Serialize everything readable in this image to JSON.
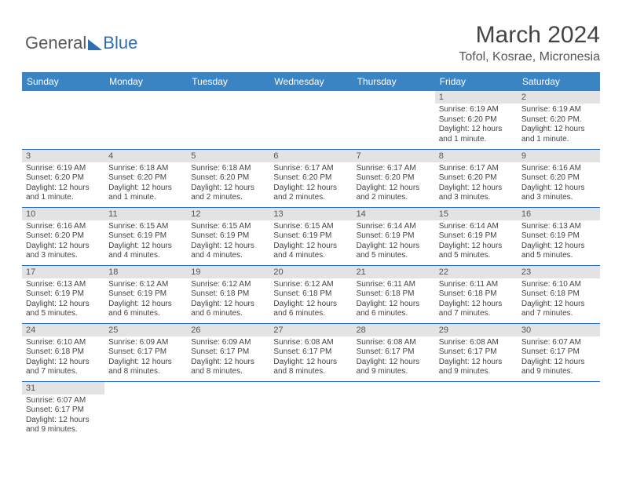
{
  "logo": {
    "part1": "General",
    "part2": "Blue"
  },
  "header": {
    "title": "March 2024",
    "location": "Tofol, Kosrae, Micronesia"
  },
  "colors": {
    "headerBg": "#3b84c4",
    "rowBorder": "#2f6fb0",
    "dayNumBg": "#e3e3e3"
  },
  "weekdays": [
    "Sunday",
    "Monday",
    "Tuesday",
    "Wednesday",
    "Thursday",
    "Friday",
    "Saturday"
  ],
  "weeks": [
    [
      {
        "n": "",
        "t": ""
      },
      {
        "n": "",
        "t": ""
      },
      {
        "n": "",
        "t": ""
      },
      {
        "n": "",
        "t": ""
      },
      {
        "n": "",
        "t": ""
      },
      {
        "n": "1",
        "t": "Sunrise: 6:19 AM\nSunset: 6:20 PM\nDaylight: 12 hours and 1 minute."
      },
      {
        "n": "2",
        "t": "Sunrise: 6:19 AM\nSunset: 6:20 PM.\nDaylight: 12 hours and 1 minute."
      }
    ],
    [
      {
        "n": "3",
        "t": "Sunrise: 6:19 AM\nSunset: 6:20 PM\nDaylight: 12 hours and 1 minute."
      },
      {
        "n": "4",
        "t": "Sunrise: 6:18 AM\nSunset: 6:20 PM\nDaylight: 12 hours and 1 minute."
      },
      {
        "n": "5",
        "t": "Sunrise: 6:18 AM\nSunset: 6:20 PM\nDaylight: 12 hours and 2 minutes."
      },
      {
        "n": "6",
        "t": "Sunrise: 6:17 AM\nSunset: 6:20 PM\nDaylight: 12 hours and 2 minutes."
      },
      {
        "n": "7",
        "t": "Sunrise: 6:17 AM\nSunset: 6:20 PM\nDaylight: 12 hours and 2 minutes."
      },
      {
        "n": "8",
        "t": "Sunrise: 6:17 AM\nSunset: 6:20 PM\nDaylight: 12 hours and 3 minutes."
      },
      {
        "n": "9",
        "t": "Sunrise: 6:16 AM\nSunset: 6:20 PM\nDaylight: 12 hours and 3 minutes."
      }
    ],
    [
      {
        "n": "10",
        "t": "Sunrise: 6:16 AM\nSunset: 6:20 PM\nDaylight: 12 hours and 3 minutes."
      },
      {
        "n": "11",
        "t": "Sunrise: 6:15 AM\nSunset: 6:19 PM\nDaylight: 12 hours and 4 minutes."
      },
      {
        "n": "12",
        "t": "Sunrise: 6:15 AM\nSunset: 6:19 PM\nDaylight: 12 hours and 4 minutes."
      },
      {
        "n": "13",
        "t": "Sunrise: 6:15 AM\nSunset: 6:19 PM\nDaylight: 12 hours and 4 minutes."
      },
      {
        "n": "14",
        "t": "Sunrise: 6:14 AM\nSunset: 6:19 PM\nDaylight: 12 hours and 5 minutes."
      },
      {
        "n": "15",
        "t": "Sunrise: 6:14 AM\nSunset: 6:19 PM\nDaylight: 12 hours and 5 minutes."
      },
      {
        "n": "16",
        "t": "Sunrise: 6:13 AM\nSunset: 6:19 PM\nDaylight: 12 hours and 5 minutes."
      }
    ],
    [
      {
        "n": "17",
        "t": "Sunrise: 6:13 AM\nSunset: 6:19 PM\nDaylight: 12 hours and 5 minutes."
      },
      {
        "n": "18",
        "t": "Sunrise: 6:12 AM\nSunset: 6:19 PM\nDaylight: 12 hours and 6 minutes."
      },
      {
        "n": "19",
        "t": "Sunrise: 6:12 AM\nSunset: 6:18 PM\nDaylight: 12 hours and 6 minutes."
      },
      {
        "n": "20",
        "t": "Sunrise: 6:12 AM\nSunset: 6:18 PM\nDaylight: 12 hours and 6 minutes."
      },
      {
        "n": "21",
        "t": "Sunrise: 6:11 AM\nSunset: 6:18 PM\nDaylight: 12 hours and 6 minutes."
      },
      {
        "n": "22",
        "t": "Sunrise: 6:11 AM\nSunset: 6:18 PM\nDaylight: 12 hours and 7 minutes."
      },
      {
        "n": "23",
        "t": "Sunrise: 6:10 AM\nSunset: 6:18 PM\nDaylight: 12 hours and 7 minutes."
      }
    ],
    [
      {
        "n": "24",
        "t": "Sunrise: 6:10 AM\nSunset: 6:18 PM\nDaylight: 12 hours and 7 minutes."
      },
      {
        "n": "25",
        "t": "Sunrise: 6:09 AM\nSunset: 6:17 PM\nDaylight: 12 hours and 8 minutes."
      },
      {
        "n": "26",
        "t": "Sunrise: 6:09 AM\nSunset: 6:17 PM\nDaylight: 12 hours and 8 minutes."
      },
      {
        "n": "27",
        "t": "Sunrise: 6:08 AM\nSunset: 6:17 PM\nDaylight: 12 hours and 8 minutes."
      },
      {
        "n": "28",
        "t": "Sunrise: 6:08 AM\nSunset: 6:17 PM\nDaylight: 12 hours and 9 minutes."
      },
      {
        "n": "29",
        "t": "Sunrise: 6:08 AM\nSunset: 6:17 PM\nDaylight: 12 hours and 9 minutes."
      },
      {
        "n": "30",
        "t": "Sunrise: 6:07 AM\nSunset: 6:17 PM\nDaylight: 12 hours and 9 minutes."
      }
    ],
    [
      {
        "n": "31",
        "t": "Sunrise: 6:07 AM\nSunset: 6:17 PM\nDaylight: 12 hours and 9 minutes."
      },
      {
        "n": "",
        "t": ""
      },
      {
        "n": "",
        "t": ""
      },
      {
        "n": "",
        "t": ""
      },
      {
        "n": "",
        "t": ""
      },
      {
        "n": "",
        "t": ""
      },
      {
        "n": "",
        "t": ""
      }
    ]
  ]
}
